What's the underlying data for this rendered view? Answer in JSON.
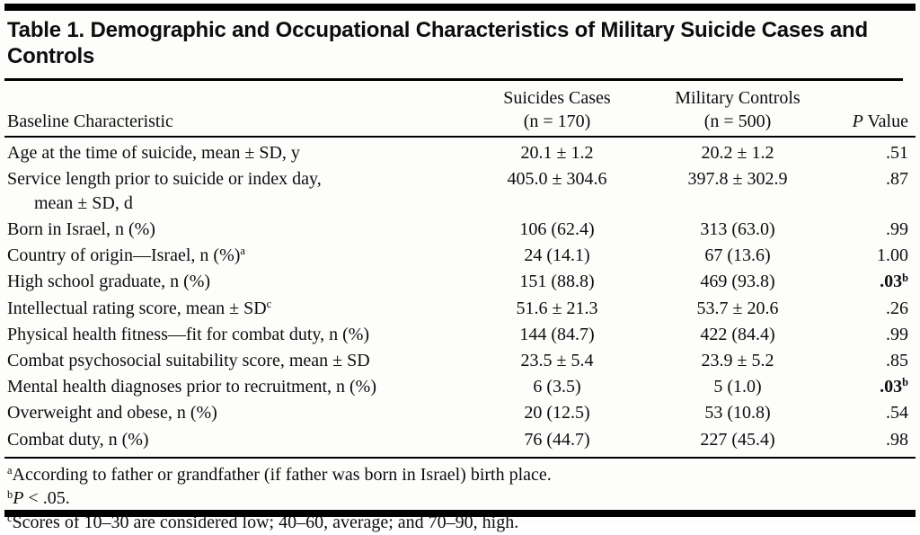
{
  "title": "Table 1. Demographic and Occupational Characteristics of Military Suicide Cases and Controls",
  "columns": {
    "characteristic": "Baseline Characteristic",
    "suicides_line1": "Suicides Cases",
    "suicides_line2": "(n = 170)",
    "controls_line1": "Military Controls",
    "controls_line2": "(n = 500)",
    "p_italic": "P",
    "p_rest": " Value"
  },
  "rows": [
    {
      "characteristic": "Age at the time of suicide, mean ± SD, y",
      "suicides": "20.1 ± 1.2",
      "controls": "20.2 ± 1.2",
      "p": ".51"
    },
    {
      "characteristic": "Service length prior to suicide or index day,",
      "characteristic_line2": "mean ± SD,  d",
      "suicides": "405.0 ± 304.6",
      "controls": "397.8 ± 302.9",
      "p": ".87"
    },
    {
      "characteristic": "Born in Israel, n (%)",
      "suicides": "106 (62.4)",
      "controls": "313 (63.0)",
      "p": ".99"
    },
    {
      "characteristic": "Country of origin—Israel, n (%)",
      "sup": "a",
      "suicides": "24 (14.1)",
      "controls": "67 (13.6)",
      "p": "1.00"
    },
    {
      "characteristic": "High school graduate, n (%)",
      "suicides": "151 (88.8)",
      "controls": "469 (93.8)",
      "p": ".03",
      "p_sup": "b"
    },
    {
      "characteristic": "Intellectual rating score, mean ± SD",
      "sup": "c",
      "suicides": "51.6 ± 21.3",
      "controls": "53.7 ± 20.6",
      "p": ".26"
    },
    {
      "characteristic": "Physical health fitness—fit for combat duty, n (%)",
      "suicides": "144 (84.7)",
      "controls": "422 (84.4)",
      "p": ".99"
    },
    {
      "characteristic": "Combat psychosocial suitability score, mean ± SD",
      "suicides": "23.5 ± 5.4",
      "controls": "23.9 ± 5.2",
      "p": ".85"
    },
    {
      "characteristic": "Mental health diagnoses prior to recruitment, n (%)",
      "suicides": "6 (3.5)",
      "controls": "5 (1.0)",
      "p": ".03",
      "p_sup": "b"
    },
    {
      "characteristic": "Overweight and obese, n (%)",
      "suicides": "20 (12.5)",
      "controls": "53 (10.8)",
      "p": ".54"
    },
    {
      "characteristic": "Combat duty, n (%)",
      "suicides": "76 (44.7)",
      "controls": "227 (45.4)",
      "p": ".98"
    }
  ],
  "footnotes": [
    {
      "sup": "a",
      "text": "According to father or grandfather (if father was born in Israel) birth place."
    },
    {
      "sup": "b",
      "italic": "P",
      "text": " < .05."
    },
    {
      "sup": "c",
      "text": "Scores of 10–30 are considered low; 40–60, average; and 70–90, high."
    }
  ]
}
